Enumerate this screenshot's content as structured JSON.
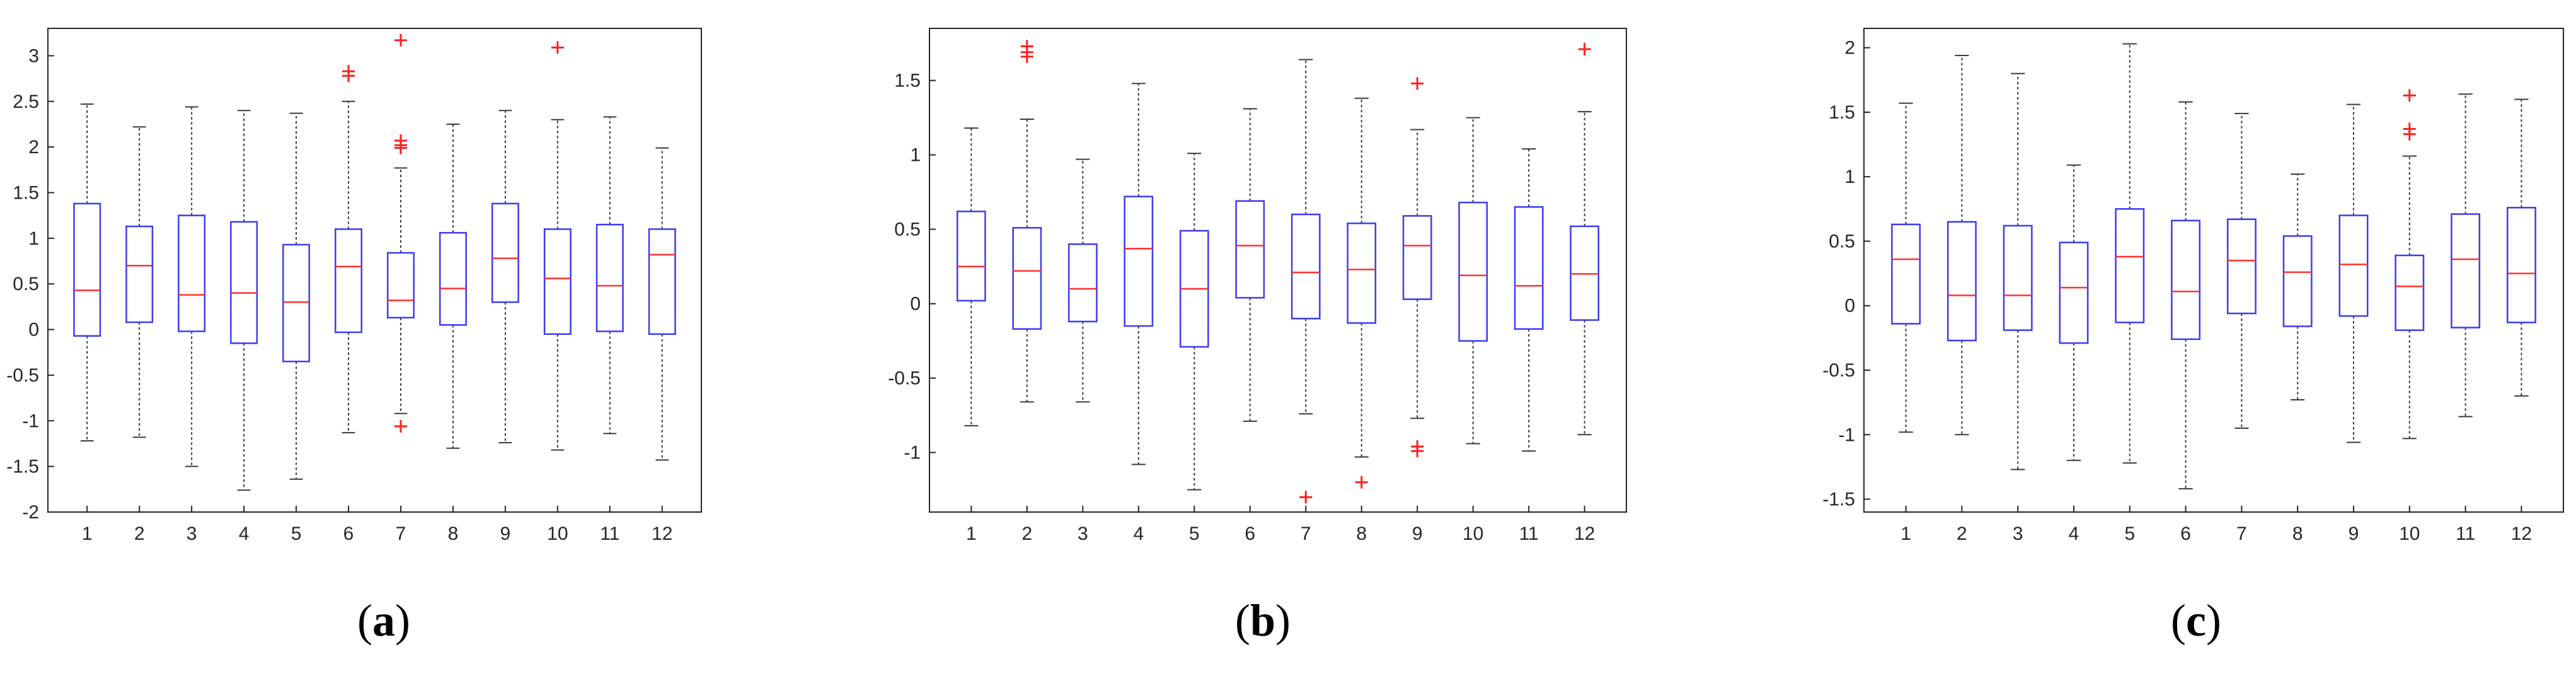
{
  "figure": {
    "colors": {
      "box": "#3b3bf2",
      "median": "#ff3030",
      "outlier": "#ff2020",
      "whisker": "#3a3a3a",
      "axis": "#262626"
    },
    "panels": [
      {
        "caption_letter": "a"
      },
      {
        "caption_letter": "b"
      },
      {
        "caption_letter": "c"
      }
    ]
  },
  "chart_data": [
    {
      "type": "box",
      "categories": [
        "1",
        "2",
        "3",
        "4",
        "5",
        "6",
        "7",
        "8",
        "9",
        "10",
        "11",
        "12"
      ],
      "ylim": [
        -2,
        3.3
      ],
      "yticks": [
        -2,
        -1.5,
        -1,
        -0.5,
        0,
        0.5,
        1,
        1.5,
        2,
        2.5,
        3
      ],
      "ytick_labels": [
        "-2",
        "-1.5",
        "-1",
        "-0.5",
        "0",
        "0.5",
        "1",
        "1.5",
        "2",
        "2.5",
        "3"
      ],
      "grid": false,
      "boxes": [
        {
          "min": -1.22,
          "q1": -0.07,
          "median": 0.43,
          "q3": 1.38,
          "max": 2.47,
          "outliers": []
        },
        {
          "min": -1.18,
          "q1": 0.08,
          "median": 0.7,
          "q3": 1.13,
          "max": 2.22,
          "outliers": []
        },
        {
          "min": -1.5,
          "q1": -0.02,
          "median": 0.38,
          "q3": 1.25,
          "max": 2.44,
          "outliers": []
        },
        {
          "min": -1.76,
          "q1": -0.15,
          "median": 0.4,
          "q3": 1.18,
          "max": 2.4,
          "outliers": []
        },
        {
          "min": -1.64,
          "q1": -0.35,
          "median": 0.3,
          "q3": 0.93,
          "max": 2.37,
          "outliers": []
        },
        {
          "min": -1.13,
          "q1": -0.03,
          "median": 0.69,
          "q3": 1.1,
          "max": 2.5,
          "outliers": [
            2.78,
            2.83
          ]
        },
        {
          "min": -0.92,
          "q1": 0.13,
          "median": 0.32,
          "q3": 0.84,
          "max": 1.77,
          "outliers": [
            -1.06,
            1.99,
            2.02,
            2.07,
            3.17
          ]
        },
        {
          "min": -1.3,
          "q1": 0.05,
          "median": 0.45,
          "q3": 1.06,
          "max": 2.25,
          "outliers": []
        },
        {
          "min": -1.24,
          "q1": 0.3,
          "median": 0.78,
          "q3": 1.38,
          "max": 2.4,
          "outliers": []
        },
        {
          "min": -1.32,
          "q1": -0.05,
          "median": 0.56,
          "q3": 1.1,
          "max": 2.3,
          "outliers": [
            3.09
          ]
        },
        {
          "min": -1.14,
          "q1": -0.02,
          "median": 0.48,
          "q3": 1.15,
          "max": 2.33,
          "outliers": []
        },
        {
          "min": -1.43,
          "q1": -0.05,
          "median": 0.82,
          "q3": 1.1,
          "max": 1.99,
          "outliers": []
        }
      ]
    },
    {
      "type": "box",
      "categories": [
        "1",
        "2",
        "3",
        "4",
        "5",
        "6",
        "7",
        "8",
        "9",
        "10",
        "11",
        "12"
      ],
      "ylim": [
        -1.4,
        1.85
      ],
      "yticks": [
        -1,
        -0.5,
        0,
        0.5,
        1,
        1.5
      ],
      "ytick_labels": [
        "-1",
        "-0.5",
        "0",
        "0.5",
        "1",
        "1.5"
      ],
      "grid": false,
      "boxes": [
        {
          "min": -0.82,
          "q1": 0.02,
          "median": 0.25,
          "q3": 0.62,
          "max": 1.18,
          "outliers": []
        },
        {
          "min": -0.66,
          "q1": -0.17,
          "median": 0.22,
          "q3": 0.51,
          "max": 1.24,
          "outliers": [
            1.66,
            1.69,
            1.73
          ]
        },
        {
          "min": -0.66,
          "q1": -0.12,
          "median": 0.1,
          "q3": 0.4,
          "max": 0.97,
          "outliers": []
        },
        {
          "min": -1.08,
          "q1": -0.15,
          "median": 0.37,
          "q3": 0.72,
          "max": 1.48,
          "outliers": []
        },
        {
          "min": -1.25,
          "q1": -0.29,
          "median": 0.1,
          "q3": 0.49,
          "max": 1.01,
          "outliers": []
        },
        {
          "min": -0.79,
          "q1": 0.04,
          "median": 0.39,
          "q3": 0.69,
          "max": 1.31,
          "outliers": []
        },
        {
          "min": -0.74,
          "q1": -0.1,
          "median": 0.21,
          "q3": 0.6,
          "max": 1.64,
          "outliers": [
            -1.3
          ]
        },
        {
          "min": -1.03,
          "q1": -0.13,
          "median": 0.23,
          "q3": 0.54,
          "max": 1.38,
          "outliers": [
            -1.2
          ]
        },
        {
          "min": -0.77,
          "q1": 0.03,
          "median": 0.39,
          "q3": 0.59,
          "max": 1.17,
          "outliers": [
            -0.96,
            -0.99,
            1.48
          ]
        },
        {
          "min": -0.94,
          "q1": -0.25,
          "median": 0.19,
          "q3": 0.68,
          "max": 1.25,
          "outliers": []
        },
        {
          "min": -0.99,
          "q1": -0.17,
          "median": 0.12,
          "q3": 0.65,
          "max": 1.04,
          "outliers": []
        },
        {
          "min": -0.88,
          "q1": -0.11,
          "median": 0.2,
          "q3": 0.52,
          "max": 1.29,
          "outliers": [
            1.71
          ]
        }
      ]
    },
    {
      "type": "box",
      "categories": [
        "1",
        "2",
        "3",
        "4",
        "5",
        "6",
        "7",
        "8",
        "9",
        "10",
        "11",
        "12"
      ],
      "ylim": [
        -1.6,
        2.15
      ],
      "yticks": [
        -1.5,
        -1,
        -0.5,
        0,
        0.5,
        1,
        1.5,
        2
      ],
      "ytick_labels": [
        "-1.5",
        "-1",
        "-0.5",
        "0",
        "0.5",
        "1",
        "1.5",
        "2"
      ],
      "grid": false,
      "boxes": [
        {
          "min": -0.98,
          "q1": -0.14,
          "median": 0.36,
          "q3": 0.63,
          "max": 1.57,
          "outliers": []
        },
        {
          "min": -1.0,
          "q1": -0.27,
          "median": 0.08,
          "q3": 0.65,
          "max": 1.94,
          "outliers": []
        },
        {
          "min": -1.27,
          "q1": -0.19,
          "median": 0.08,
          "q3": 0.62,
          "max": 1.8,
          "outliers": []
        },
        {
          "min": -1.2,
          "q1": -0.29,
          "median": 0.14,
          "q3": 0.49,
          "max": 1.09,
          "outliers": []
        },
        {
          "min": -1.22,
          "q1": -0.13,
          "median": 0.38,
          "q3": 0.75,
          "max": 2.03,
          "outliers": []
        },
        {
          "min": -1.42,
          "q1": -0.26,
          "median": 0.11,
          "q3": 0.66,
          "max": 1.58,
          "outliers": []
        },
        {
          "min": -0.95,
          "q1": -0.06,
          "median": 0.35,
          "q3": 0.67,
          "max": 1.49,
          "outliers": []
        },
        {
          "min": -0.73,
          "q1": -0.16,
          "median": 0.26,
          "q3": 0.54,
          "max": 1.02,
          "outliers": []
        },
        {
          "min": -1.06,
          "q1": -0.08,
          "median": 0.32,
          "q3": 0.7,
          "max": 1.56,
          "outliers": []
        },
        {
          "min": -1.03,
          "q1": -0.19,
          "median": 0.15,
          "q3": 0.39,
          "max": 1.16,
          "outliers": [
            1.33,
            1.37,
            1.63
          ]
        },
        {
          "min": -0.86,
          "q1": -0.17,
          "median": 0.36,
          "q3": 0.71,
          "max": 1.64,
          "outliers": []
        },
        {
          "min": -0.7,
          "q1": -0.13,
          "median": 0.25,
          "q3": 0.76,
          "max": 1.6,
          "outliers": []
        }
      ]
    }
  ]
}
